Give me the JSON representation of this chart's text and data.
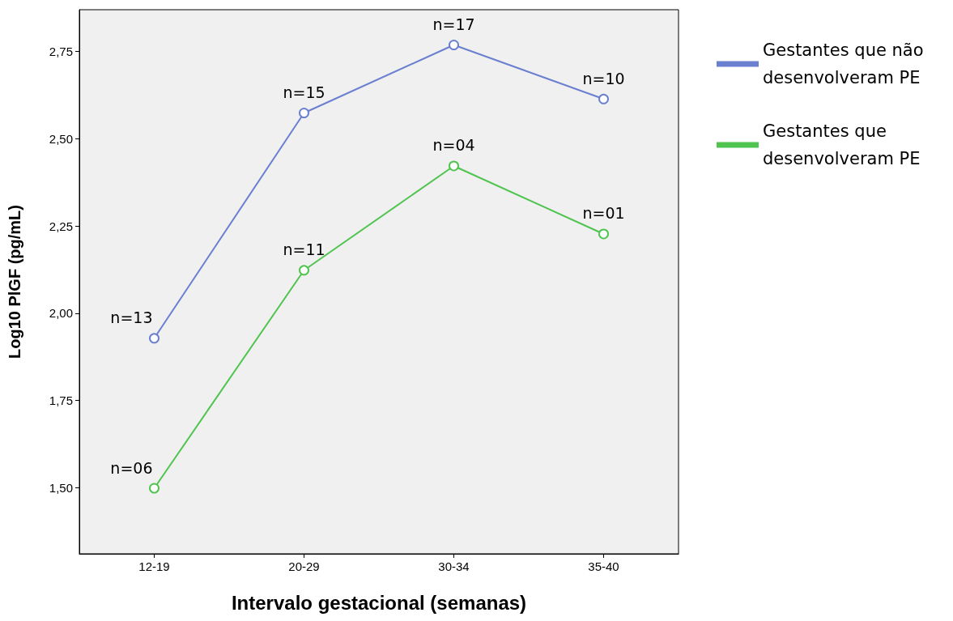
{
  "chart_data": {
    "type": "line",
    "xlabel": "Intervalo gestacional (semanas)",
    "ylabel": "Log10 PlGF (pg/mL)",
    "categories": [
      "12-19",
      "20-29",
      "30-34",
      "35-40"
    ],
    "series": [
      {
        "name": "Gestantes que não desenvolveram PE",
        "color": "#6a7fd0",
        "values": [
          1.928,
          2.574,
          2.769,
          2.614
        ]
      },
      {
        "name": "Gestantes que desenvolveram PE",
        "color": "#4fc44f",
        "values": [
          1.498,
          2.123,
          2.422,
          2.227
        ]
      }
    ],
    "ylim": [
      1.31,
      2.87
    ],
    "yticks": [
      {
        "value": 1.5,
        "label": "1,50"
      },
      {
        "value": 1.75,
        "label": "1,75"
      },
      {
        "value": 2.0,
        "label": "2,00"
      },
      {
        "value": 2.25,
        "label": "2,25"
      },
      {
        "value": 2.5,
        "label": "2,50"
      },
      {
        "value": 2.75,
        "label": "2,75"
      }
    ],
    "annotations": [
      {
        "text": "n=13",
        "x": "12-19",
        "y": 1.928
      },
      {
        "text": "n=15",
        "x": "20-29",
        "y": 2.574
      },
      {
        "text": "n=17",
        "x": "30-34",
        "y": 2.769
      },
      {
        "text": "n=10",
        "x": "35-40",
        "y": 2.614
      },
      {
        "text": "n=06",
        "x": "12-19",
        "y": 1.498
      },
      {
        "text": "n=11",
        "x": "20-29",
        "y": 2.123
      },
      {
        "text": "n=04",
        "x": "30-34",
        "y": 2.422
      },
      {
        "text": "n=01",
        "x": "35-40",
        "y": 2.227
      }
    ],
    "legend": "right",
    "marker": "circle",
    "grid": false
  }
}
